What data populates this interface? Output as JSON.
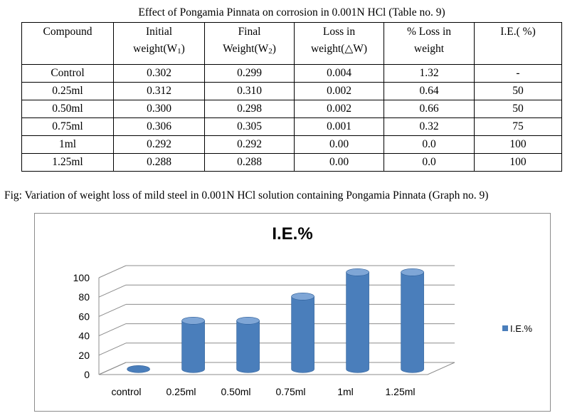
{
  "table": {
    "caption": "Effect of Pongamia Pinnata on corrosion in 0.001N HCl (Table no. 9)",
    "headers": [
      {
        "line1": "Compound",
        "line2": ""
      },
      {
        "line1": "Initial",
        "line2": "weight(W",
        "sub": "1",
        "tail": ")"
      },
      {
        "line1": "Final",
        "line2": "Weight(W",
        "sub": "2",
        "tail": ")"
      },
      {
        "line1": "Loss in",
        "line2": "weight(△W)"
      },
      {
        "line1": "% Loss in",
        "line2": "weight"
      },
      {
        "line1": "I.E.( %)",
        "line2": ""
      }
    ],
    "rows": [
      [
        "Control",
        "0.302",
        "0.299",
        "0.004",
        "1.32",
        "-"
      ],
      [
        "0.25ml",
        "0.312",
        "0.310",
        "0.002",
        "0.64",
        "50"
      ],
      [
        "0.50ml",
        "0.300",
        "0.298",
        "0.002",
        "0.66",
        "50"
      ],
      [
        "0.75ml",
        "0.306",
        "0.305",
        "0.001",
        "0.32",
        "75"
      ],
      [
        "1ml",
        "0.292",
        "0.292",
        "0.00",
        "0.0",
        "100"
      ],
      [
        "1.25ml",
        "0.288",
        "0.288",
        "0.00",
        "0.0",
        "100"
      ]
    ]
  },
  "figure": {
    "caption": "Fig: Variation of weight loss of mild steel in 0.001N HCl solution containing Pongamia Pinnata (Graph no. 9)"
  },
  "chart_data": {
    "type": "bar",
    "title": "I.E.%",
    "categories": [
      "control",
      "0.25ml",
      "0.50ml",
      "0.75ml",
      "1ml",
      "1.25ml"
    ],
    "series": [
      {
        "name": "I.E.%",
        "values": [
          0,
          50,
          50,
          75,
          100,
          100
        ]
      }
    ],
    "yticks": [
      "0",
      "20",
      "40",
      "60",
      "80",
      "100"
    ],
    "ylim": [
      0,
      100
    ],
    "grid": true,
    "legend": "right",
    "colors": {
      "bar": "#4a7ebb",
      "bar_light": "#7fa6d6",
      "bar_dark": "#2e5f99",
      "grid": "#8c8c8c"
    }
  }
}
